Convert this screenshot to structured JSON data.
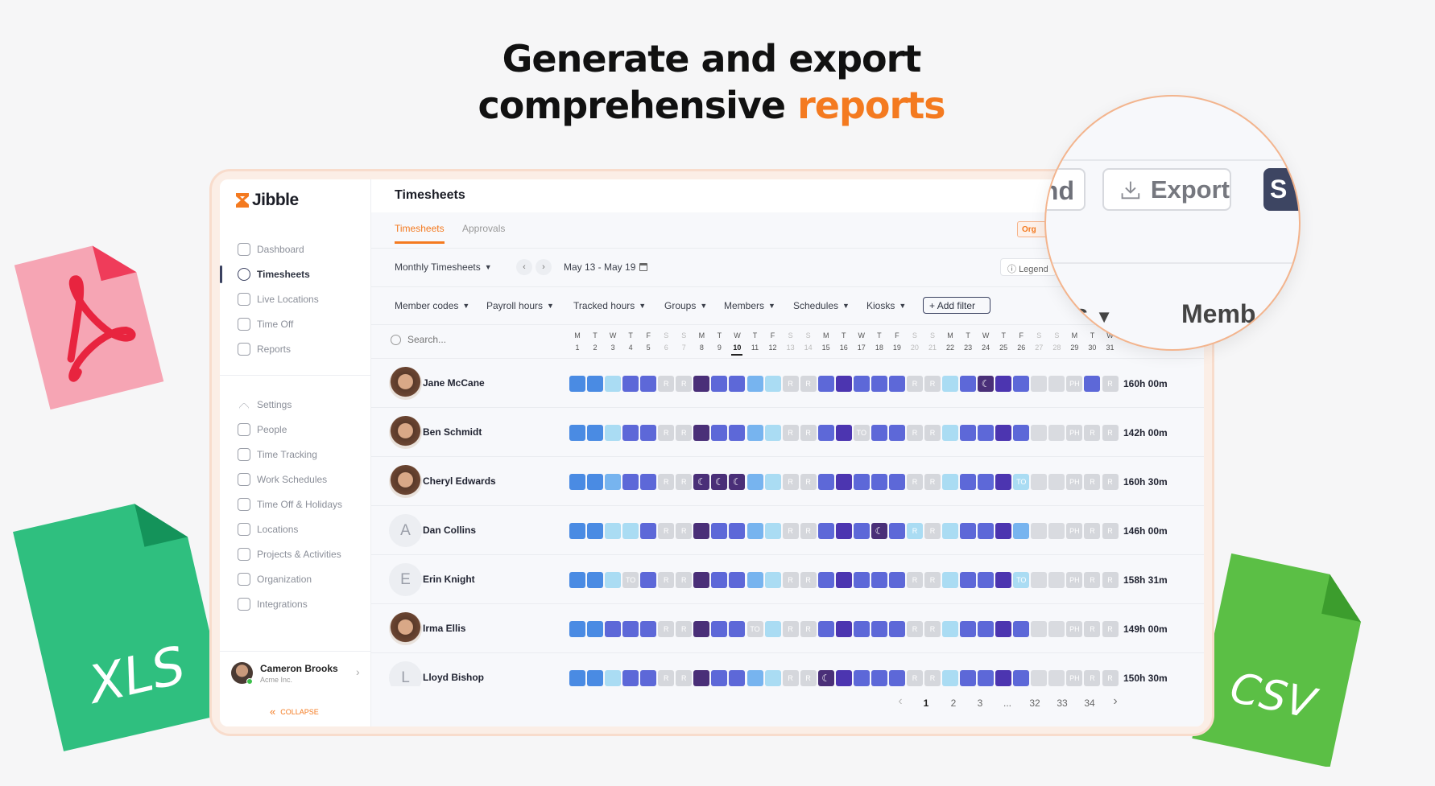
{
  "headline": {
    "line1": "Generate and export",
    "line2_prefix": "comprehensive ",
    "line2_accent": "reports"
  },
  "files": {
    "pdf": "PDF",
    "xls": "XLS",
    "csv": "CSV"
  },
  "brand": {
    "name": "Jibble"
  },
  "sidebar": {
    "main": [
      {
        "label": "Dashboard",
        "icon": "dashboard-icon"
      },
      {
        "label": "Timesheets",
        "icon": "clock-icon",
        "active": true
      },
      {
        "label": "Live Locations",
        "icon": "location-pin-icon"
      },
      {
        "label": "Time Off",
        "icon": "suitcase-icon"
      },
      {
        "label": "Reports",
        "icon": "clipboard-icon"
      }
    ],
    "settings": [
      {
        "label": "Settings",
        "icon": "chevron-up-icon"
      },
      {
        "label": "People",
        "icon": "people-icon"
      },
      {
        "label": "Time Tracking",
        "icon": "time-tracking-icon"
      },
      {
        "label": "Work Schedules",
        "icon": "schedule-icon"
      },
      {
        "label": "Time Off & Holidays",
        "icon": "suitcase-icon"
      },
      {
        "label": "Locations",
        "icon": "location-pin-icon"
      },
      {
        "label": "Projects & Activities",
        "icon": "tag-icon"
      },
      {
        "label": "Organization",
        "icon": "organization-icon"
      },
      {
        "label": "Integrations",
        "icon": "plug-icon"
      }
    ],
    "profile": {
      "name": "Cameron Brooks",
      "org": "Acme Inc."
    },
    "collapse": "COLLAPSE"
  },
  "header": {
    "title": "Timesheets"
  },
  "tabs": [
    {
      "label": "Timesheets",
      "active": true
    },
    {
      "label": "Approvals"
    }
  ],
  "toolbar": {
    "view": "Monthly Timesheets",
    "range": "May 13 - May 19",
    "legend": "Legend",
    "org_btn": "Org"
  },
  "filters": [
    "Member codes",
    "Payroll hours",
    "Tracked hours",
    "Groups",
    "Members",
    "Schedules",
    "Kiosks"
  ],
  "add_filter": "Add filter",
  "search": {
    "placeholder": "Search..."
  },
  "days": {
    "letters": [
      "M",
      "T",
      "W",
      "T",
      "F",
      "S",
      "S",
      "M",
      "T",
      "W",
      "T",
      "F",
      "S",
      "S",
      "M",
      "T",
      "W",
      "T",
      "F",
      "S",
      "S",
      "M",
      "T",
      "W",
      "T",
      "F",
      "S",
      "S",
      "M",
      "T",
      "W"
    ],
    "numbers": [
      "1",
      "2",
      "3",
      "4",
      "5",
      "6",
      "7",
      "8",
      "9",
      "10",
      "11",
      "12",
      "13",
      "14",
      "15",
      "16",
      "17",
      "18",
      "19",
      "20",
      "21",
      "22",
      "23",
      "24",
      "25",
      "26",
      "27",
      "28",
      "29",
      "30",
      "31"
    ],
    "today": "10"
  },
  "members": [
    {
      "name": "Jane McCane",
      "avatar": "photo",
      "total": "160h 00m",
      "cells": "b b l m m R R d m m s l R R m p m m m R R l m N p m e e PH m R"
    },
    {
      "name": "Ben Schmidt",
      "avatar": "photo",
      "total": "142h 00m",
      "cells": "b b l m m R R d m m s l R R m p TO m m R R l m m p m e e PH R R"
    },
    {
      "name": "Cheryl Edwards",
      "avatar": "photo",
      "total": "160h 30m",
      "cells": "b b s m m R R N N N s l R R m p m m m R R l m m p TOl e e PH R R"
    },
    {
      "name": "Dan Collins",
      "avatar": "A",
      "total": "146h 00m",
      "cells": "b b l l m R R d m m s l R R m p m N m Rl R l m m p s e e PH R R"
    },
    {
      "name": "Erin Knight",
      "avatar": "E",
      "total": "158h 31m",
      "cells": "b b l TO m R R d m m s l R R m p m m m R R l m m p TOl e e PH R R"
    },
    {
      "name": "Irma Ellis",
      "avatar": "photo",
      "total": "149h 00m",
      "cells": "b b m m m R R d m m TO l R R m p m m m R R l m m p m e e PH R R"
    },
    {
      "name": "Lloyd Bishop",
      "avatar": "L",
      "total": "150h 30m",
      "cells": "b b l m m R R d m m s l R R N p m m m R R l m m p m e e PH R R"
    }
  ],
  "pagination": [
    "1",
    "2",
    "3",
    "...",
    "32",
    "33",
    "34"
  ],
  "magnifier": {
    "legend_partial": "nd",
    "export": "Export",
    "save_partial": "S",
    "filter_partial": "ns",
    "members_partial": "Memb"
  },
  "colors": {
    "accent": "#f47a20",
    "b": "#4a8be3",
    "l": "#aadcf3",
    "s": "#77b4ef",
    "m": "#5d68d8",
    "p": "#4c35b0",
    "d": "#4a2f78",
    "N": "#4a2f78",
    "R": "#d5d7dc",
    "e": "#d9dbe0",
    "PH": "#d5d7dc",
    "TO": "#d5d7dc",
    "TOl": "#aadcf3",
    "Rl": "#aadcf3"
  }
}
